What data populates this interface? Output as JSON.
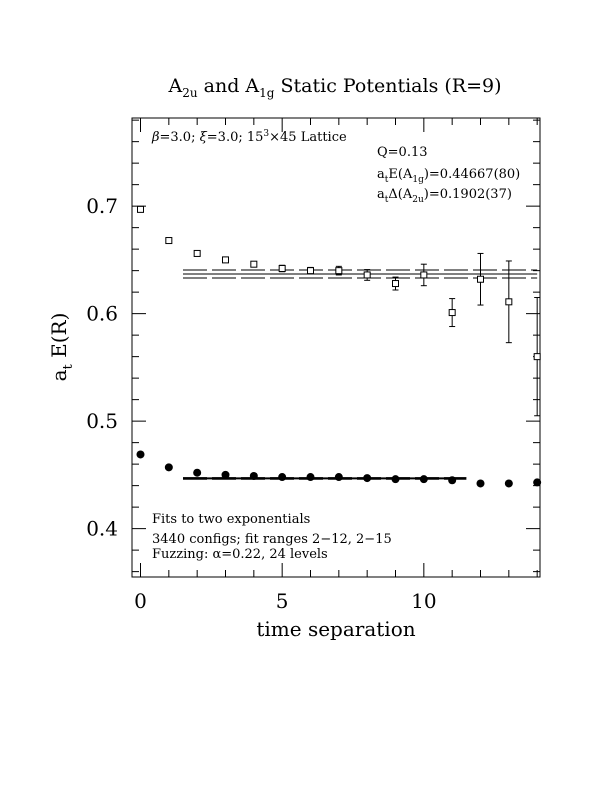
{
  "chart_data": {
    "type": "scatter",
    "title": {
      "main": "A",
      "sub1": "2u",
      "mid": " and A",
      "sub2": "1g",
      "rest": " Static Potentials (R=9)"
    },
    "xlabel": "time separation",
    "ylabel": {
      "main": "a",
      "sub": "t",
      "rest": " E(R)"
    },
    "xlim": [
      -0.3,
      14.1
    ],
    "ylim": [
      0.355,
      0.782
    ],
    "x_ticks": [
      0,
      5,
      10
    ],
    "x_tick_labels": [
      "0",
      "5",
      "10"
    ],
    "y_ticks": [
      0.4,
      0.5,
      0.6,
      0.7
    ],
    "y_tick_labels": [
      "0.4",
      "0.5",
      "0.6",
      "0.7"
    ],
    "grid": false,
    "annotations": {
      "lattice": {
        "beta": "β",
        "l1": "=3.0; ",
        "xi": "ξ",
        "l2": "=3.0; 15",
        "sup": "3",
        "l3": "×45 Lattice"
      },
      "q": "Q=0.13",
      "energy": {
        "a": "a",
        "sub_t": "t",
        "mid": "E(A",
        "sub": "1g",
        "rest": ")=0.44667(80)"
      },
      "gap": {
        "a": "a",
        "sub_t": "t",
        "mid": "Δ(A",
        "sub": "2u",
        "rest": ")=0.1902(37)"
      },
      "fits_line1": "Fits to two exponentials",
      "fits_line2": "3440 configs; fit ranges 2−12, 2−15",
      "fits_line3": "Fuzzing: α=0.22, 24 levels"
    },
    "series": [
      {
        "name": "A1g",
        "marker": "filled-circle",
        "x": [
          0,
          1,
          2,
          3,
          4,
          5,
          6,
          7,
          8,
          9,
          10,
          11,
          12,
          13,
          14
        ],
        "y": [
          0.469,
          0.457,
          0.452,
          0.45,
          0.449,
          0.448,
          0.448,
          0.448,
          0.447,
          0.446,
          0.446,
          0.445,
          0.442,
          0.442,
          0.443
        ],
        "err": [
          0.0015,
          0.0012,
          0.001,
          0.001,
          0.001,
          0.001,
          0.001,
          0.001,
          0.001,
          0.0012,
          0.0015,
          0.0015,
          0.002,
          0.002,
          0.0025
        ]
      },
      {
        "name": "A2u",
        "marker": "open-square",
        "x": [
          0,
          1,
          2,
          3,
          4,
          5,
          6,
          7,
          8,
          9,
          10,
          11,
          12,
          13,
          14
        ],
        "y": [
          0.697,
          0.668,
          0.656,
          0.65,
          0.646,
          0.642,
          0.64,
          0.64,
          0.636,
          0.628,
          0.636,
          0.601,
          0.632,
          0.611,
          0.56
        ],
        "err": [
          0.002,
          0.002,
          0.002,
          0.002,
          0.002,
          0.003,
          0.003,
          0.004,
          0.005,
          0.006,
          0.01,
          0.013,
          0.024,
          0.038,
          0.055
        ]
      }
    ],
    "fits": [
      {
        "name": "A1g fit",
        "x_range": [
          1.5,
          11.5
        ],
        "center": 0.4467,
        "band": [
          0.4459,
          0.4475
        ]
      },
      {
        "name": "A2u fit",
        "x_range": [
          1.5,
          14
        ],
        "center": 0.6369,
        "band": [
          0.6332,
          0.6406
        ]
      }
    ]
  }
}
